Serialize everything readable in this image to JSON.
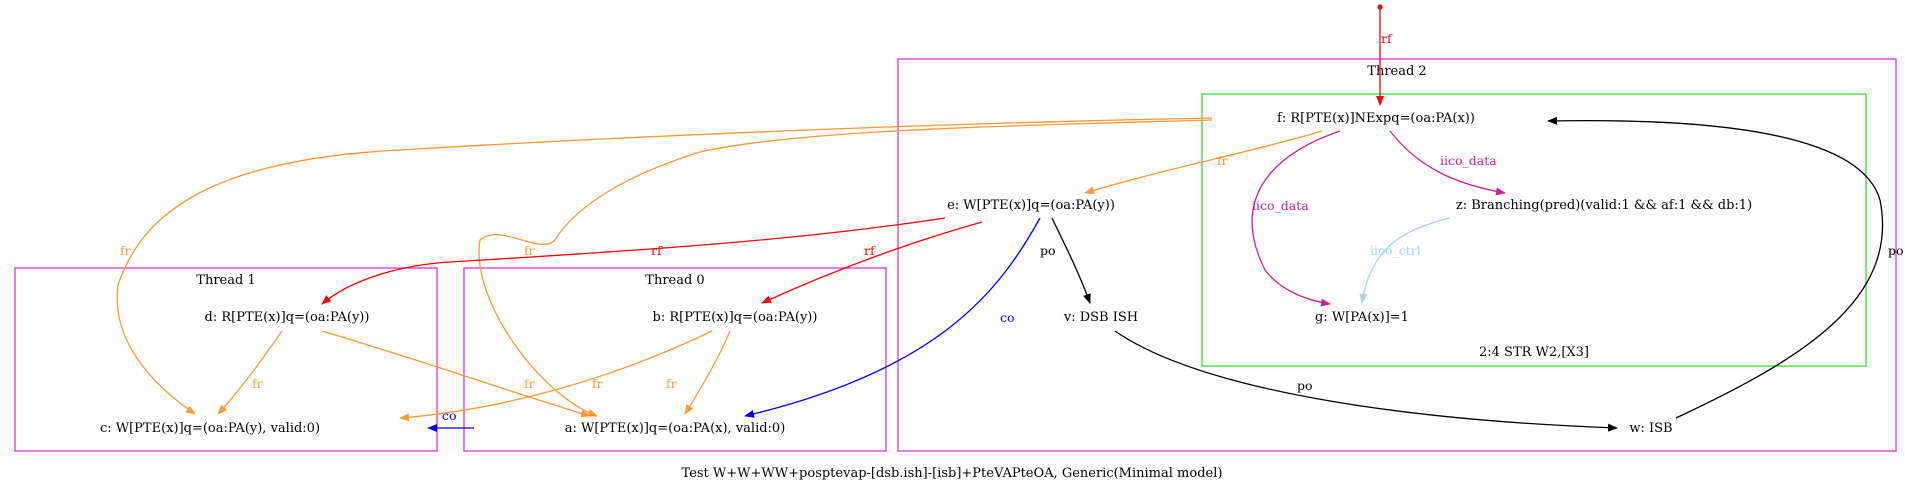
{
  "caption": "Test W+W+WW+posptevap-[dsb.ish]-[isb]+PteVAPteOA, Generic(Minimal model)",
  "colors": {
    "rf": "#ff0000",
    "fr": "#ff9933",
    "co": "#0000ff",
    "po": "#000000",
    "iico_data": "#cc1f99",
    "iico_ctrl": "#a5d5e8",
    "cluster_thread": "#dd33dd",
    "cluster_instr": "#33dd33"
  },
  "clusters": {
    "thread2": "Thread 2",
    "thread1": "Thread 1",
    "thread0": "Thread 0",
    "instr": "2:4 STR W2,[X3]"
  },
  "nodes": {
    "f": "f: R[PTE(x)]NExpq=(oa:PA(x))",
    "e": "e: W[PTE(x)]q=(oa:PA(y))",
    "z": "z: Branching(pred)(valid:1 && af:1 && db:1)",
    "g": "g: W[PA(x)]=1",
    "v": "v: DSB ISH",
    "w": "w: ISB",
    "d": "d: R[PTE(x)]q=(oa:PA(y))",
    "b": "b: R[PTE(x)]q=(oa:PA(y))",
    "c": "c: W[PTE(x)]q=(oa:PA(y), valid:0)",
    "a": "a: W[PTE(x)]q=(oa:PA(x), valid:0)"
  },
  "edge_labels": {
    "rf": "rf",
    "fr": "fr",
    "co": "co",
    "po": "po",
    "iico_data": "iico_data",
    "iico_ctrl": "iico_ctrl"
  }
}
